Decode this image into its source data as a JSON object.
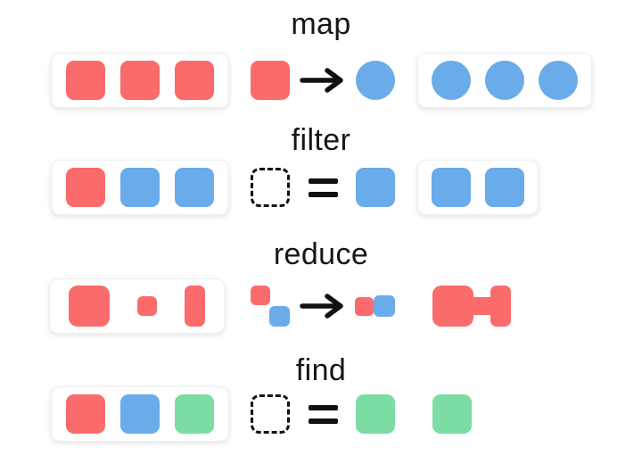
{
  "colors": {
    "red": "#fb6b6b",
    "blue": "#6aabea",
    "green": "#7bdda4",
    "ink": "#111111"
  },
  "rows": [
    {
      "label": "map",
      "operator": "arrow",
      "input": [
        "red-square",
        "red-square",
        "red-square"
      ],
      "op_left": [
        "red-square"
      ],
      "op_right": [
        "blue-circle"
      ],
      "output": [
        "blue-circle",
        "blue-circle",
        "blue-circle"
      ],
      "output_boxed": true
    },
    {
      "label": "filter",
      "operator": "equals",
      "input": [
        "red-square",
        "blue-square",
        "blue-square"
      ],
      "op_left": [
        "dashed-square"
      ],
      "op_right": [
        "blue-square"
      ],
      "output": [
        "blue-square",
        "blue-square"
      ],
      "output_boxed": true
    },
    {
      "label": "reduce",
      "operator": "arrow",
      "input": [
        "red-square-lg",
        "red-square-sm",
        "red-rect-tall"
      ],
      "op_left": [
        "reduce-cluster"
      ],
      "op_right": [
        "reduce-pair"
      ],
      "output": [
        "red-merged"
      ],
      "output_boxed": false
    },
    {
      "label": "find",
      "operator": "equals",
      "input": [
        "red-square",
        "blue-square",
        "green-square"
      ],
      "op_left": [
        "dashed-square"
      ],
      "op_right": [
        "green-square"
      ],
      "output": [
        "green-square"
      ],
      "output_boxed": false
    }
  ]
}
